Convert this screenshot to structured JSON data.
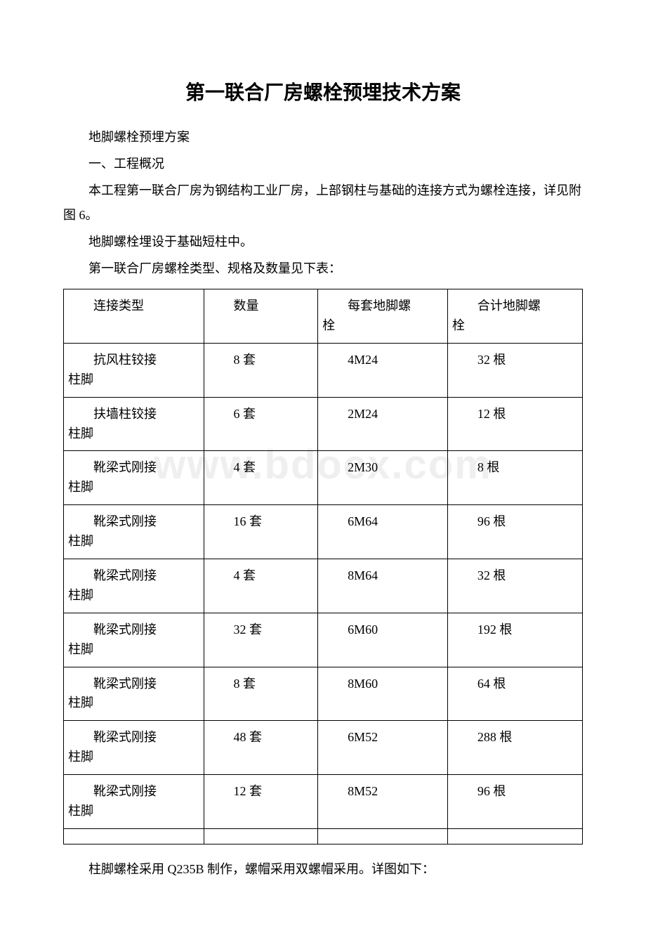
{
  "title": "第一联合厂房螺栓预埋技术方案",
  "paragraphs": {
    "p1": "地脚螺栓预埋方案",
    "p2": "一、工程概况",
    "p3": "本工程第一联合厂房为钢结构工业厂房，上部钢柱与基础的连接方式为螺栓连接，详见附图 6。",
    "p4": "地脚螺栓埋设于基础短柱中。",
    "p5": "第一联合厂房螺栓类型、规格及数量见下表：",
    "p6": "柱脚螺栓采用 Q235B 制作，螺帽采用双螺帽采用。详图如下："
  },
  "table": {
    "headers": {
      "h1": "连接类型",
      "h2": "数量",
      "h3a": "每套地脚螺",
      "h3b": "栓",
      "h4a": "合计地脚螺",
      "h4b": "栓"
    },
    "rows": [
      {
        "c1a": "抗风柱铰接",
        "c1b": "柱脚",
        "c2": "8 套",
        "c3": "4M24",
        "c4": "32 根"
      },
      {
        "c1a": "扶墙柱铰接",
        "c1b": "柱脚",
        "c2": "6 套",
        "c3": "2M24",
        "c4": "12 根"
      },
      {
        "c1a": "靴梁式刚接",
        "c1b": "柱脚",
        "c2": "4 套",
        "c3": "2M30",
        "c4": "8 根"
      },
      {
        "c1a": "靴梁式刚接",
        "c1b": "柱脚",
        "c2": "16 套",
        "c3": "6M64",
        "c4": "96 根"
      },
      {
        "c1a": "靴梁式刚接",
        "c1b": "柱脚",
        "c2": "4 套",
        "c3": "8M64",
        "c4": "32 根"
      },
      {
        "c1a": "靴梁式刚接",
        "c1b": "柱脚",
        "c2": "32 套",
        "c3": "6M60",
        "c4": "192 根"
      },
      {
        "c1a": "靴梁式刚接",
        "c1b": "柱脚",
        "c2": "8 套",
        "c3": "8M60",
        "c4": "64 根"
      },
      {
        "c1a": "靴梁式刚接",
        "c1b": "柱脚",
        "c2": "48 套",
        "c3": "6M52",
        "c4": "288 根"
      },
      {
        "c1a": "靴梁式刚接",
        "c1b": "柱脚",
        "c2": "12 套",
        "c3": "8M52",
        "c4": "96 根"
      }
    ]
  },
  "watermark": "www.bdocx.com",
  "style": {
    "page_bg": "#ffffff",
    "text_color": "#000000",
    "border_color": "#000000",
    "watermark_color": "#efefef",
    "title_fontsize": 28,
    "body_fontsize": 18
  }
}
